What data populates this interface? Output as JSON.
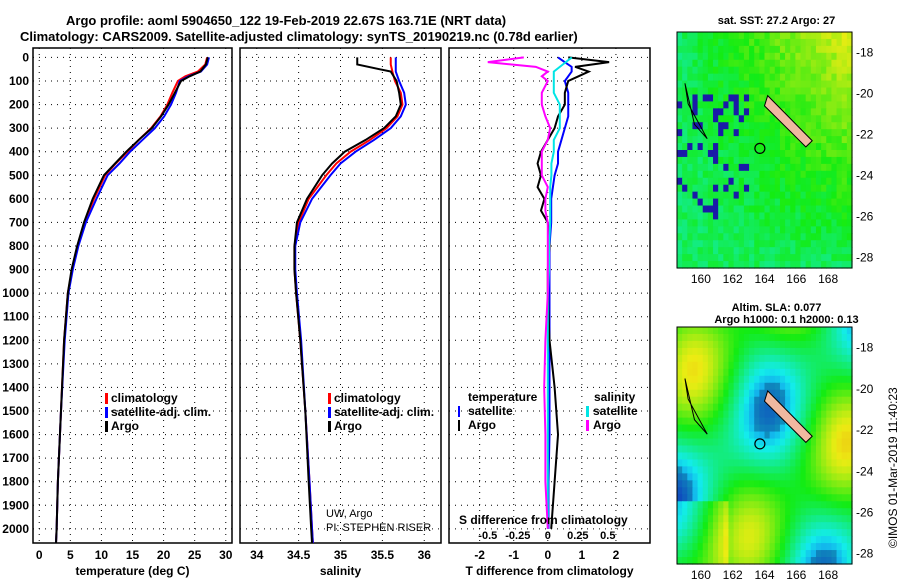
{
  "title_line1": "Argo profile: aoml 5904650_122 19-Feb-2019 22.67S 163.71E (NRT data)",
  "title_line2": "Climatology: CARS2009. Satellite-adjusted climatology: synTS_20190219.nc (0.78d earlier)",
  "colors": {
    "climatology": "#ff0000",
    "satellite": "#0000ff",
    "argo": "#000000",
    "sal_sat": "#00e5e5",
    "sal_argo": "#ff00ff"
  },
  "chart_data": [
    {
      "type": "line",
      "name": "temperature",
      "xlabel": "temperature (deg C)",
      "xlim": [
        -1,
        31
      ],
      "xticks": [
        0,
        5,
        10,
        15,
        20,
        25,
        30
      ],
      "ylim": [
        2060,
        -40
      ],
      "yticks": [
        0,
        100,
        200,
        300,
        400,
        500,
        600,
        700,
        800,
        900,
        1000,
        1100,
        1200,
        1300,
        1400,
        1500,
        1600,
        1700,
        1800,
        1900,
        2000
      ],
      "legend": [
        "climatology",
        "satellite-adj. clim.",
        "Argo"
      ],
      "depth": [
        0,
        30,
        60,
        80,
        100,
        150,
        200,
        250,
        300,
        350,
        400,
        450,
        500,
        600,
        700,
        800,
        900,
        1000,
        1200,
        1500,
        1800,
        2000,
        2060
      ],
      "series": [
        {
          "name": "climatology",
          "values": [
            27,
            26.7,
            25.5,
            23.5,
            22.3,
            21.4,
            20.6,
            19.5,
            18,
            16,
            14.2,
            12.3,
            10.6,
            8.8,
            7.3,
            6.2,
            5.3,
            4.6,
            4,
            3.5,
            3,
            2.8,
            2.7
          ]
        },
        {
          "name": "satellite-adj. clim.",
          "values": [
            27.3,
            27,
            26,
            24,
            22.6,
            22,
            21.2,
            20.1,
            18.6,
            16.6,
            14.6,
            12.9,
            11,
            9.2,
            7.5,
            6.3,
            5.4,
            4.7,
            4.1,
            3.5,
            3,
            2.8,
            2.7
          ]
        },
        {
          "name": "Argo",
          "values": [
            27.1,
            26.8,
            25.9,
            24.2,
            22.8,
            21.8,
            20.8,
            19.6,
            18.1,
            16,
            14,
            12.2,
            10.4,
            8.6,
            7.2,
            6.1,
            5.2,
            4.6,
            4,
            3.5,
            3,
            2.8,
            2.7
          ]
        }
      ]
    },
    {
      "type": "line",
      "name": "salinity",
      "xlabel": "salinity",
      "xlim": [
        33.8,
        36.2
      ],
      "xticks": [
        34,
        34.5,
        35,
        35.5,
        36
      ],
      "ylim": [
        2060,
        -40
      ],
      "legend": [
        "climatology",
        "satellite-adj. clim.",
        "Argo"
      ],
      "credit": [
        "UW, Argo",
        "PI: STEPHEN RISER"
      ],
      "depth": [
        0,
        30,
        60,
        100,
        150,
        200,
        250,
        300,
        350,
        400,
        450,
        500,
        600,
        700,
        800,
        900,
        1000,
        1200,
        1500,
        1800,
        2000,
        2060
      ],
      "series": [
        {
          "name": "climatology",
          "values": [
            35.6,
            35.6,
            35.62,
            35.65,
            35.72,
            35.74,
            35.68,
            35.55,
            35.35,
            35.12,
            34.95,
            34.83,
            34.62,
            34.5,
            34.45,
            34.45,
            34.47,
            34.52,
            34.58,
            34.63,
            34.66,
            34.67
          ]
        },
        {
          "name": "satellite-adj. clim.",
          "values": [
            35.66,
            35.66,
            35.66,
            35.7,
            35.76,
            35.78,
            35.72,
            35.6,
            35.4,
            35.18,
            35.0,
            34.88,
            34.66,
            34.52,
            34.46,
            34.46,
            34.48,
            34.53,
            34.58,
            34.63,
            34.66,
            34.67
          ]
        },
        {
          "name": "Argo",
          "values": [
            35.2,
            35.2,
            35.6,
            35.67,
            35.7,
            35.72,
            35.66,
            35.52,
            35.3,
            35.05,
            34.9,
            34.78,
            34.6,
            34.48,
            34.45,
            34.45,
            34.47,
            34.52,
            34.58,
            34.62,
            34.65,
            34.66
          ]
        }
      ]
    },
    {
      "type": "line",
      "name": "difference",
      "xlabel": "T difference from climatology",
      "xlim": [
        -2.9,
        3.0
      ],
      "xticks": [
        -2,
        -1,
        0,
        1,
        2
      ],
      "x2label": "S difference from climatology",
      "x2ticks": [
        "-0.5",
        "-0.25",
        "0",
        "0.25",
        "0.5"
      ],
      "ylim": [
        2060,
        -40
      ],
      "legend_left": [
        "temperature",
        "satellite",
        "Argo"
      ],
      "legend_right": [
        "salinity",
        "satellite",
        "Argo"
      ],
      "depth": [
        0,
        20,
        40,
        60,
        80,
        100,
        150,
        200,
        250,
        300,
        350,
        400,
        450,
        500,
        550,
        600,
        650,
        700,
        800,
        900,
        1000,
        1200,
        1400,
        1600,
        1800,
        2000
      ],
      "series": [
        {
          "name": "T satellite",
          "values": [
            0.3,
            0.5,
            0.7,
            0.7,
            0.6,
            0.5,
            0.6,
            0.6,
            0.6,
            0.5,
            0.4,
            0.3,
            0.3,
            0.2,
            0.15,
            0.1,
            0.1,
            0.1,
            0.05,
            0.05,
            0.05,
            0.05,
            0.05,
            0.05,
            0.02,
            0.02
          ]
        },
        {
          "name": "T Argo",
          "values": [
            0.6,
            1.8,
            0.8,
            1.2,
            0.9,
            0.6,
            0.5,
            0.5,
            0.3,
            0.2,
            0,
            -0.2,
            -0.3,
            -0.2,
            -0.3,
            -0.1,
            -0.2,
            0,
            0.05,
            0,
            0,
            0.05,
            0.2,
            0.3,
            0.2,
            0.1
          ]
        },
        {
          "name": "S satellite",
          "values": [
            0.2,
            0.15,
            0.1,
            0.05,
            0.05,
            0.05,
            0.05,
            0.1,
            0.1,
            0.1,
            0.05,
            0.05,
            0.03,
            0.03,
            0.02,
            0.02,
            0.02,
            0.02,
            0.01,
            0.01,
            0.0,
            0.0,
            0.0,
            0.0,
            0.0,
            0.0
          ]
        },
        {
          "name": "S Argo",
          "values": [
            -0.2,
            -0.5,
            -0.1,
            0,
            -0.05,
            0,
            -0.05,
            -0.05,
            -0.02,
            0.02,
            0,
            -0.05,
            -0.05,
            -0.05,
            0,
            -0.02,
            -0.02,
            0,
            0,
            0,
            0,
            -0.02,
            -0.03,
            -0.02,
            -0.02,
            0
          ]
        }
      ]
    },
    {
      "type": "heatmap",
      "name": "sst_map",
      "title": "sat. SST: 27.2 Argo: 27",
      "xticks": [
        160,
        162,
        164,
        166,
        168
      ],
      "yticks": [
        -18,
        -20,
        -22,
        -24,
        -26,
        -28
      ],
      "argo_position": [
        163.71,
        -22.67
      ]
    },
    {
      "type": "heatmap",
      "name": "sla_map",
      "title": [
        "Altim. SLA: 0.077",
        "Argo h1000: 0.1 h2000: 0.13"
      ],
      "xticks": [
        160,
        162,
        164,
        166,
        168
      ],
      "yticks": [
        -18,
        -20,
        -22,
        -24,
        -26,
        -28
      ],
      "argo_position": [
        163.71,
        -22.67
      ]
    }
  ],
  "credit": "©IMOS 01-Mar-2019 11:40:23"
}
